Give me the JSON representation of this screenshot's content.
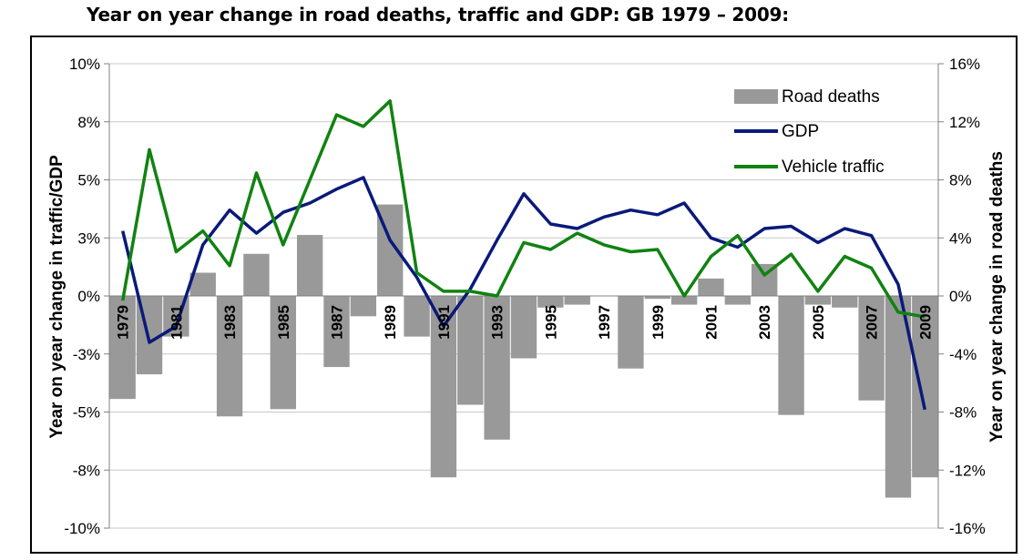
{
  "title": "Year on year change in road deaths, traffic and GDP: GB 1979 – 2009:",
  "chart_data": {
    "type": "bar",
    "title": "Year on year change in road deaths, traffic and GDP: GB 1979 – 2009:",
    "categories": [
      "1979",
      "1980",
      "1981",
      "1982",
      "1983",
      "1984",
      "1985",
      "1986",
      "1987",
      "1988",
      "1989",
      "1990",
      "1991",
      "1992",
      "1993",
      "1994",
      "1995",
      "1996",
      "1997",
      "1998",
      "1999",
      "2000",
      "2001",
      "2002",
      "2003",
      "2004",
      "2005",
      "2006",
      "2007",
      "2008",
      "2009"
    ],
    "category_labels": [
      "1979",
      "1981",
      "1983",
      "1985",
      "1987",
      "1989",
      "1991",
      "1993",
      "1995",
      "1997",
      "1999",
      "2001",
      "2003",
      "2005",
      "2007",
      "2009"
    ],
    "ylabel_left": "Year on year change in traffic/GDP",
    "ylabel_right": "Year on year change in road deaths",
    "yticks_left": [
      "10%",
      "8%",
      "5%",
      "3%",
      "0%",
      "-3%",
      "-5%",
      "-8%",
      "-10%"
    ],
    "yticks_right": [
      "16%",
      "12%",
      "8%",
      "4%",
      "0%",
      "-4%",
      "-8%",
      "-12%",
      "-16%"
    ],
    "ylim_left": [
      -10,
      10
    ],
    "ylim_right": [
      -16,
      16
    ],
    "grid": "horizontal",
    "legend_position": "top-right",
    "series": [
      {
        "name": "Road deaths",
        "kind": "bar",
        "axis": "right",
        "color": "#999999",
        "values": [
          -7.1,
          -5.4,
          -2.8,
          1.6,
          -8.3,
          2.9,
          -7.8,
          4.2,
          -4.9,
          -1.4,
          6.3,
          -2.8,
          -12.5,
          -7.5,
          -9.9,
          -4.3,
          -0.8,
          -0.6,
          0.0,
          -5.0,
          -0.2,
          -0.6,
          1.2,
          -0.6,
          2.2,
          -8.2,
          -0.6,
          -0.8,
          -7.2,
          -13.9,
          -12.5
        ]
      },
      {
        "name": "GDP",
        "kind": "line",
        "axis": "left",
        "color": "#0a1a7a",
        "values": [
          2.8,
          -2.0,
          -1.3,
          2.2,
          3.7,
          2.7,
          3.6,
          4.0,
          4.6,
          5.1,
          2.4,
          0.8,
          -1.3,
          0.3,
          2.4,
          4.4,
          3.1,
          2.9,
          3.4,
          3.7,
          3.5,
          4.0,
          2.5,
          2.1,
          2.9,
          3.0,
          2.3,
          2.9,
          2.6,
          0.5,
          -4.9
        ]
      },
      {
        "name": "Vehicle traffic",
        "kind": "line",
        "axis": "left",
        "color": "#118211",
        "values": [
          -0.2,
          6.3,
          1.9,
          2.8,
          1.3,
          5.3,
          2.2,
          5.0,
          7.8,
          7.3,
          8.4,
          1.0,
          0.2,
          0.2,
          0.0,
          2.3,
          2.0,
          2.7,
          2.2,
          1.9,
          2.0,
          0.0,
          1.7,
          2.6,
          0.9,
          1.8,
          0.2,
          1.7,
          1.2,
          -0.7,
          -0.9
        ]
      }
    ]
  },
  "colors": {
    "grid": "#c8c8c8",
    "frame": "#000000"
  }
}
